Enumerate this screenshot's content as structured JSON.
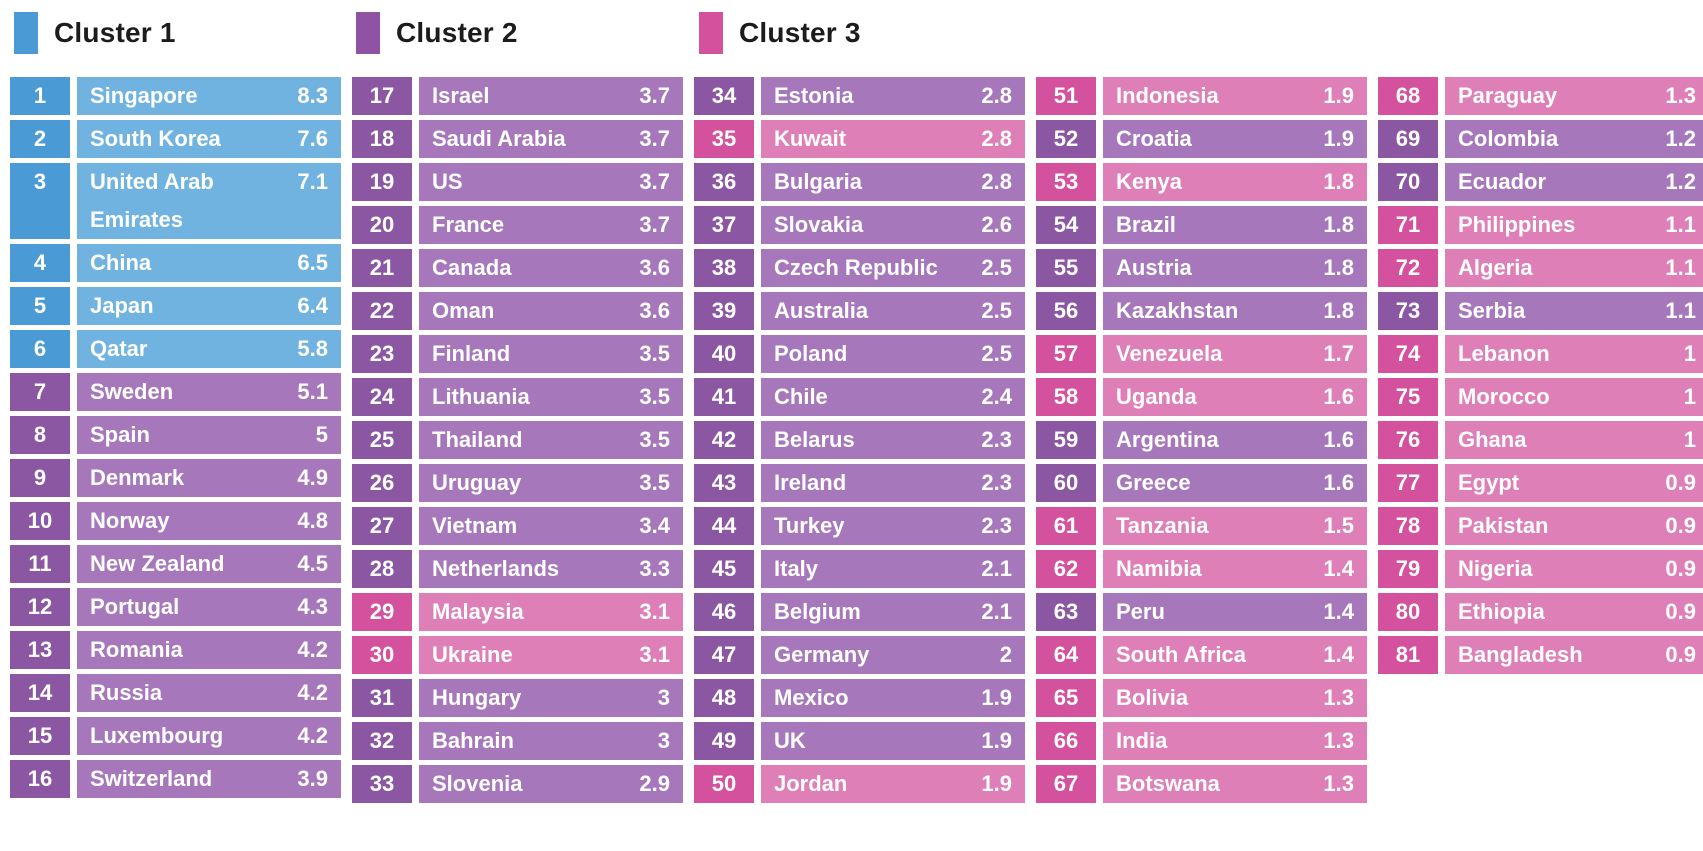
{
  "legend": {
    "items": [
      {
        "label": "Cluster 1",
        "color": "#4a9bd5"
      },
      {
        "label": "Cluster 2",
        "color": "#9053a4"
      },
      {
        "label": "Cluster 3",
        "color": "#d4519d"
      }
    ]
  },
  "cluster_colors": {
    "c1": {
      "rank_bg": "#4a9bd5",
      "cell_bg": "#70b3e1"
    },
    "c2": {
      "rank_bg": "#8b57a3",
      "cell_bg": "#a678bb"
    },
    "c3": {
      "rank_bg": "#d4519d",
      "cell_bg": "#df7fb8"
    }
  },
  "chart_data": {
    "type": "table",
    "title": "",
    "legend": [
      "Cluster 1",
      "Cluster 2",
      "Cluster 3"
    ],
    "fields": [
      "rank",
      "country",
      "value",
      "cluster"
    ],
    "columns": [
      [
        {
          "rank": 1,
          "country": "Singapore",
          "value": "8.3",
          "cluster": 1
        },
        {
          "rank": 2,
          "country": "South Korea",
          "value": "7.6",
          "cluster": 1
        },
        {
          "rank": 3,
          "country": "United Arab Emirates",
          "value": "7.1",
          "cluster": 1
        },
        {
          "rank": 4,
          "country": "China",
          "value": "6.5",
          "cluster": 1
        },
        {
          "rank": 5,
          "country": "Japan",
          "value": "6.4",
          "cluster": 1
        },
        {
          "rank": 6,
          "country": "Qatar",
          "value": "5.8",
          "cluster": 1
        },
        {
          "rank": 7,
          "country": "Sweden",
          "value": "5.1",
          "cluster": 2
        },
        {
          "rank": 8,
          "country": "Spain",
          "value": "5",
          "cluster": 2
        },
        {
          "rank": 9,
          "country": "Denmark",
          "value": "4.9",
          "cluster": 2
        },
        {
          "rank": 10,
          "country": "Norway",
          "value": "4.8",
          "cluster": 2
        },
        {
          "rank": 11,
          "country": "New Zealand",
          "value": "4.5",
          "cluster": 2
        },
        {
          "rank": 12,
          "country": "Portugal",
          "value": "4.3",
          "cluster": 2
        },
        {
          "rank": 13,
          "country": "Romania",
          "value": "4.2",
          "cluster": 2
        },
        {
          "rank": 14,
          "country": "Russia",
          "value": "4.2",
          "cluster": 2
        },
        {
          "rank": 15,
          "country": "Luxembourg",
          "value": "4.2",
          "cluster": 2
        },
        {
          "rank": 16,
          "country": "Switzerland",
          "value": "3.9",
          "cluster": 2
        }
      ],
      [
        {
          "rank": 17,
          "country": "Israel",
          "value": "3.7",
          "cluster": 2
        },
        {
          "rank": 18,
          "country": "Saudi Arabia",
          "value": "3.7",
          "cluster": 2
        },
        {
          "rank": 19,
          "country": "US",
          "value": "3.7",
          "cluster": 2
        },
        {
          "rank": 20,
          "country": "France",
          "value": "3.7",
          "cluster": 2
        },
        {
          "rank": 21,
          "country": "Canada",
          "value": "3.6",
          "cluster": 2
        },
        {
          "rank": 22,
          "country": "Oman",
          "value": "3.6",
          "cluster": 2
        },
        {
          "rank": 23,
          "country": "Finland",
          "value": "3.5",
          "cluster": 2
        },
        {
          "rank": 24,
          "country": "Lithuania",
          "value": "3.5",
          "cluster": 2
        },
        {
          "rank": 25,
          "country": "Thailand",
          "value": "3.5",
          "cluster": 2
        },
        {
          "rank": 26,
          "country": "Uruguay",
          "value": "3.5",
          "cluster": 2
        },
        {
          "rank": 27,
          "country": "Vietnam",
          "value": "3.4",
          "cluster": 2
        },
        {
          "rank": 28,
          "country": "Netherlands",
          "value": "3.3",
          "cluster": 2
        },
        {
          "rank": 29,
          "country": "Malaysia",
          "value": "3.1",
          "cluster": 3
        },
        {
          "rank": 30,
          "country": "Ukraine",
          "value": "3.1",
          "cluster": 3
        },
        {
          "rank": 31,
          "country": "Hungary",
          "value": "3",
          "cluster": 2
        },
        {
          "rank": 32,
          "country": "Bahrain",
          "value": "3",
          "cluster": 2
        },
        {
          "rank": 33,
          "country": "Slovenia",
          "value": "2.9",
          "cluster": 2
        }
      ],
      [
        {
          "rank": 34,
          "country": "Estonia",
          "value": "2.8",
          "cluster": 2
        },
        {
          "rank": 35,
          "country": "Kuwait",
          "value": "2.8",
          "cluster": 3
        },
        {
          "rank": 36,
          "country": "Bulgaria",
          "value": "2.8",
          "cluster": 2
        },
        {
          "rank": 37,
          "country": "Slovakia",
          "value": "2.6",
          "cluster": 2
        },
        {
          "rank": 38,
          "country": "Czech Republic",
          "value": "2.5",
          "cluster": 2
        },
        {
          "rank": 39,
          "country": "Australia",
          "value": "2.5",
          "cluster": 2
        },
        {
          "rank": 40,
          "country": "Poland",
          "value": "2.5",
          "cluster": 2
        },
        {
          "rank": 41,
          "country": "Chile",
          "value": "2.4",
          "cluster": 2
        },
        {
          "rank": 42,
          "country": "Belarus",
          "value": "2.3",
          "cluster": 2
        },
        {
          "rank": 43,
          "country": "Ireland",
          "value": "2.3",
          "cluster": 2
        },
        {
          "rank": 44,
          "country": "Turkey",
          "value": "2.3",
          "cluster": 2
        },
        {
          "rank": 45,
          "country": "Italy",
          "value": "2.1",
          "cluster": 2
        },
        {
          "rank": 46,
          "country": "Belgium",
          "value": "2.1",
          "cluster": 2
        },
        {
          "rank": 47,
          "country": "Germany",
          "value": "2",
          "cluster": 2
        },
        {
          "rank": 48,
          "country": "Mexico",
          "value": "1.9",
          "cluster": 2
        },
        {
          "rank": 49,
          "country": "UK",
          "value": "1.9",
          "cluster": 2
        },
        {
          "rank": 50,
          "country": "Jordan",
          "value": "1.9",
          "cluster": 3
        }
      ],
      [
        {
          "rank": 51,
          "country": "Indonesia",
          "value": "1.9",
          "cluster": 3
        },
        {
          "rank": 52,
          "country": "Croatia",
          "value": "1.9",
          "cluster": 2
        },
        {
          "rank": 53,
          "country": "Kenya",
          "value": "1.8",
          "cluster": 3
        },
        {
          "rank": 54,
          "country": "Brazil",
          "value": "1.8",
          "cluster": 2
        },
        {
          "rank": 55,
          "country": "Austria",
          "value": "1.8",
          "cluster": 2
        },
        {
          "rank": 56,
          "country": "Kazakhstan",
          "value": "1.8",
          "cluster": 2
        },
        {
          "rank": 57,
          "country": "Venezuela",
          "value": "1.7",
          "cluster": 3
        },
        {
          "rank": 58,
          "country": "Uganda",
          "value": "1.6",
          "cluster": 3
        },
        {
          "rank": 59,
          "country": "Argentina",
          "value": "1.6",
          "cluster": 2
        },
        {
          "rank": 60,
          "country": "Greece",
          "value": "1.6",
          "cluster": 2
        },
        {
          "rank": 61,
          "country": "Tanzania",
          "value": "1.5",
          "cluster": 3
        },
        {
          "rank": 62,
          "country": "Namibia",
          "value": "1.4",
          "cluster": 3
        },
        {
          "rank": 63,
          "country": "Peru",
          "value": "1.4",
          "cluster": 2
        },
        {
          "rank": 64,
          "country": "South Africa",
          "value": "1.4",
          "cluster": 3
        },
        {
          "rank": 65,
          "country": "Bolivia",
          "value": "1.3",
          "cluster": 3
        },
        {
          "rank": 66,
          "country": "India",
          "value": "1.3",
          "cluster": 3
        },
        {
          "rank": 67,
          "country": "Botswana",
          "value": "1.3",
          "cluster": 3
        }
      ],
      [
        {
          "rank": 68,
          "country": "Paraguay",
          "value": "1.3",
          "cluster": 3
        },
        {
          "rank": 69,
          "country": "Colombia",
          "value": "1.2",
          "cluster": 2
        },
        {
          "rank": 70,
          "country": "Ecuador",
          "value": "1.2",
          "cluster": 2
        },
        {
          "rank": 71,
          "country": "Philippines",
          "value": "1.1",
          "cluster": 3
        },
        {
          "rank": 72,
          "country": "Algeria",
          "value": "1.1",
          "cluster": 3
        },
        {
          "rank": 73,
          "country": "Serbia",
          "value": "1.1",
          "cluster": 2
        },
        {
          "rank": 74,
          "country": "Lebanon",
          "value": "1",
          "cluster": 3
        },
        {
          "rank": 75,
          "country": "Morocco",
          "value": "1",
          "cluster": 3
        },
        {
          "rank": 76,
          "country": "Ghana",
          "value": "1",
          "cluster": 3
        },
        {
          "rank": 77,
          "country": "Egypt",
          "value": "0.9",
          "cluster": 3
        },
        {
          "rank": 78,
          "country": "Pakistan",
          "value": "0.9",
          "cluster": 3
        },
        {
          "rank": 79,
          "country": "Nigeria",
          "value": "0.9",
          "cluster": 3
        },
        {
          "rank": 80,
          "country": "Ethiopia",
          "value": "0.9",
          "cluster": 3
        },
        {
          "rank": 81,
          "country": "Bangladesh",
          "value": "0.9",
          "cluster": 3
        }
      ]
    ]
  }
}
